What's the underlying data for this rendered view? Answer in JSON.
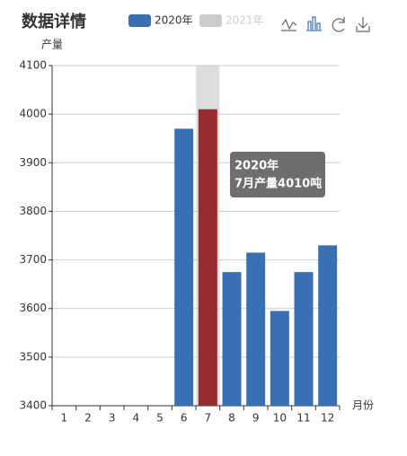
{
  "chart_data": {
    "type": "bar",
    "title": "数据详情",
    "y_label": "产量",
    "x_label": "月份",
    "categories": [
      "1",
      "2",
      "3",
      "4",
      "5",
      "6",
      "7",
      "8",
      "9",
      "10",
      "11",
      "12"
    ],
    "series": [
      {
        "name": "2020年",
        "color": "#3870b3",
        "values": [
          null,
          null,
          null,
          null,
          null,
          3970,
          4010,
          3675,
          3715,
          3595,
          3675,
          3730
        ]
      },
      {
        "name": "2021年",
        "color": "#cccccc",
        "values": [
          null,
          null,
          null,
          null,
          null,
          null,
          null,
          null,
          null,
          null,
          null,
          null
        ],
        "hidden": true
      }
    ],
    "ylim": [
      3400,
      4100
    ],
    "yticks": [
      3400,
      3500,
      3600,
      3700,
      3800,
      3900,
      4000,
      4100
    ],
    "grid": true,
    "highlight": {
      "index": 6,
      "color": "#952d30",
      "shadow": "#dddddd"
    },
    "tooltip": {
      "title": "2020年",
      "text": "7月产量4010吨"
    }
  }
}
